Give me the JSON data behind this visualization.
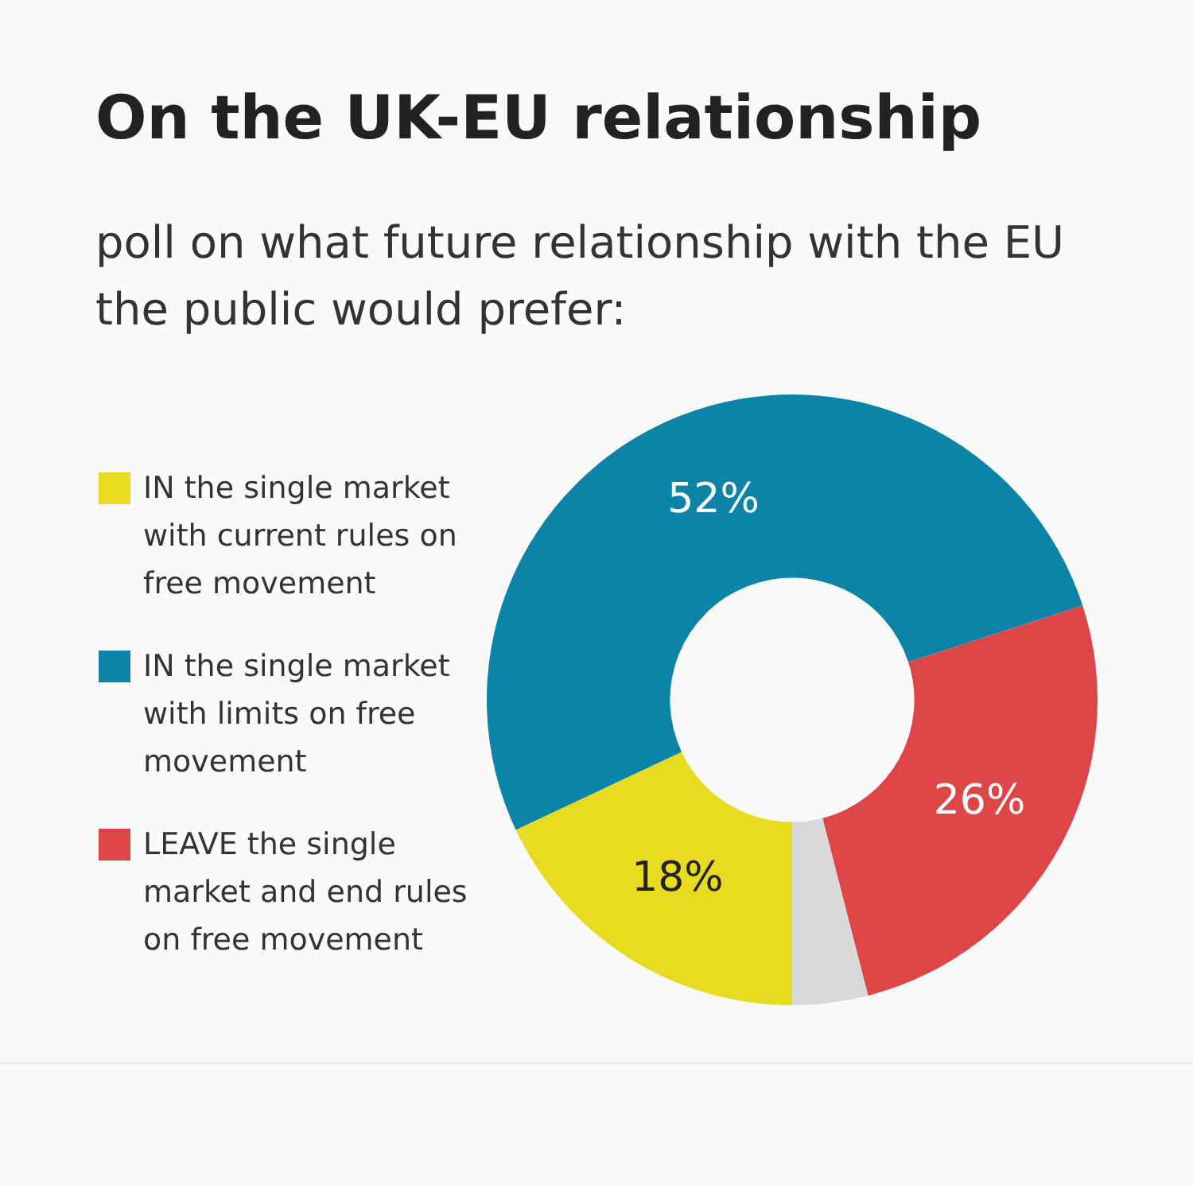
{
  "chart_data": {
    "type": "donut",
    "title": "On the UK-EU relationship",
    "subtitle": "poll on what future relationship with the EU the public would prefer:",
    "categories": [
      "IN the single market with current rules on free movement",
      "IN the single market with limits on free movement",
      "LEAVE the single market and end rules on free movement",
      null
    ],
    "values": [
      18,
      52,
      26,
      4
    ],
    "colors": [
      "#e8da1e",
      "#0c84a8",
      "#dd4546",
      "#d9d9d9"
    ],
    "value_labels": [
      "18%",
      "52%",
      "26%",
      null
    ],
    "legend": "left"
  }
}
